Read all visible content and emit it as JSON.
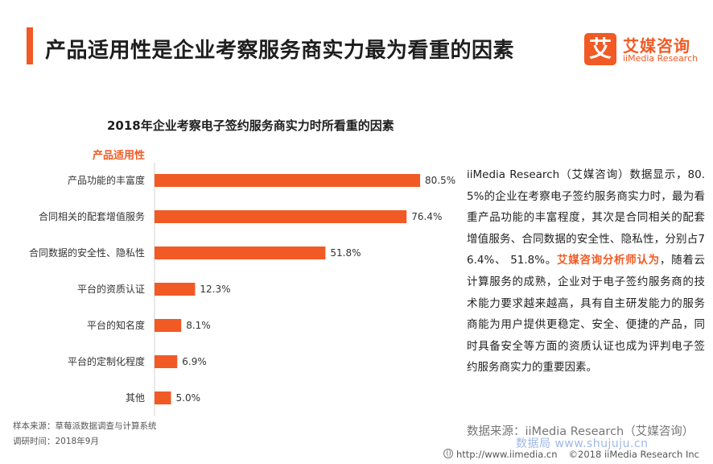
{
  "header": {
    "title": "产品适用性是企业考察服务商实力最为看重的因素"
  },
  "logo": {
    "mark_char": "艾",
    "cn": "艾媒咨询",
    "en": "iiMedia Research"
  },
  "chart_data": {
    "type": "bar",
    "orientation": "horizontal",
    "title": "2018年企业考察电子签约服务商实力时所看重的因素",
    "group_label": "产品适用性",
    "categories": [
      "产品功能的丰富度",
      "合同相关的配套增值服务",
      "合同数据的安全性、隐私性",
      "平台的资质认证",
      "平台的知名度",
      "平台的定制化程度",
      "其他"
    ],
    "values": [
      80.5,
      76.4,
      51.8,
      12.3,
      8.1,
      6.9,
      5.0
    ],
    "value_labels": [
      "80.5%",
      "76.4%",
      "51.8%",
      "12.3%",
      "8.1%",
      "6.9%",
      "5.0%"
    ],
    "unit": "%",
    "xlim": [
      0,
      100
    ],
    "bar_color": "#f15a24",
    "grid": false,
    "legend": "none"
  },
  "commentary": {
    "part1": "iiMedia Research（艾媒咨询）数据显示，80.5%的企业在考察电子签约服务商实力时，最为看重产品功能的丰富程度，其次是合同相关的配套增值服务、合同数据的安全性、隐私性，分别占76.4%、 51.8%。",
    "highlight": "艾媒咨询分析师认为",
    "part2": "，随着云计算服务的成熟，企业对于电子签约服务商的技术能力要求越来越高，具有自主研发能力的服务商能为用户提供更稳定、安全、便捷的产品，同时具备安全等方面的资质认证也成为评判电子签约服务商实力的重要因素。"
  },
  "sources": {
    "sample": "样本来源：草莓派数据调查与计算系统",
    "period": "调研时间：2018年9月",
    "data_source": "数据来源：iiMedia Research（艾媒咨询）"
  },
  "watermark": "数据局 www.shujuju.cn",
  "footer": {
    "url": "http://www.iimedia.cn",
    "copyright": "©2018  iiMedia Research Inc"
  },
  "colors": {
    "accent": "#f15a24"
  }
}
